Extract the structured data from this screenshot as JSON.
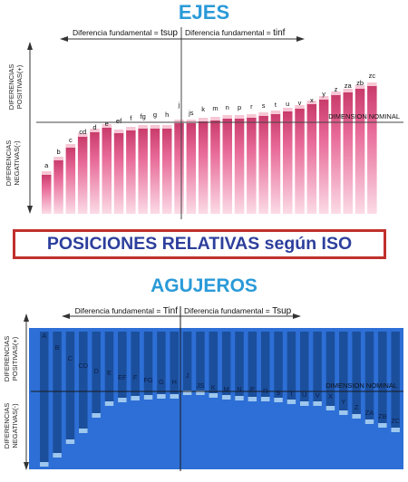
{
  "ejes": {
    "title": "EJES",
    "label_left": "Diferencia fundamental = ",
    "label_left_sym": "tsup",
    "label_right": "Diferencia fundamental = ",
    "label_right_sym": "tinf",
    "axis_pos": "DIFERENCIAS POSITIVAS(+)",
    "axis_neg": "DIFERENCIAS NEGATIVAS(-)",
    "nominal": "DIMENSION NOMINAL",
    "letters": [
      "a",
      "b",
      "c",
      "cd",
      "d",
      "e",
      "ef",
      "f",
      "fg",
      "g",
      "h",
      "j",
      "js",
      "k",
      "m",
      "n",
      "p",
      "r",
      "s",
      "t",
      "u",
      "v",
      "x",
      "y",
      "z",
      "za",
      "zb",
      "zc"
    ],
    "colors": {
      "bar": "#e0588a",
      "cap": "#f6c6d4",
      "axis": "#555555"
    }
  },
  "banner": {
    "text": "POSICIONES RELATIVAS según ISO",
    "colors": {
      "border": "#c0302c",
      "text": "#2d3f9c"
    }
  },
  "agujeros": {
    "title": "AGUJEROS",
    "label_left": "Diferencia fundamental = ",
    "label_left_sym": "Tinf",
    "label_right": "Diferencia fundamental = ",
    "label_right_sym": "Tsup",
    "axis_pos": "DIFERENCIAS POSITIVAS(+)",
    "axis_neg": "DIFERENCIAS NEGATIVAS(-)",
    "nominal": "DIMENSION NOMINAL",
    "letters": [
      "A",
      "B",
      "C",
      "CD",
      "D",
      "E",
      "EF",
      "F",
      "FG",
      "G",
      "H",
      "J",
      "JS",
      "K",
      "M",
      "N",
      "P",
      "R",
      "S",
      "T",
      "U",
      "V",
      "X",
      "Y",
      "Z",
      "ZA",
      "ZB",
      "ZC"
    ],
    "colors": {
      "bar": "#2f74d8",
      "band": "#1b4f9c",
      "cap": "#9ec7ef"
    }
  }
}
